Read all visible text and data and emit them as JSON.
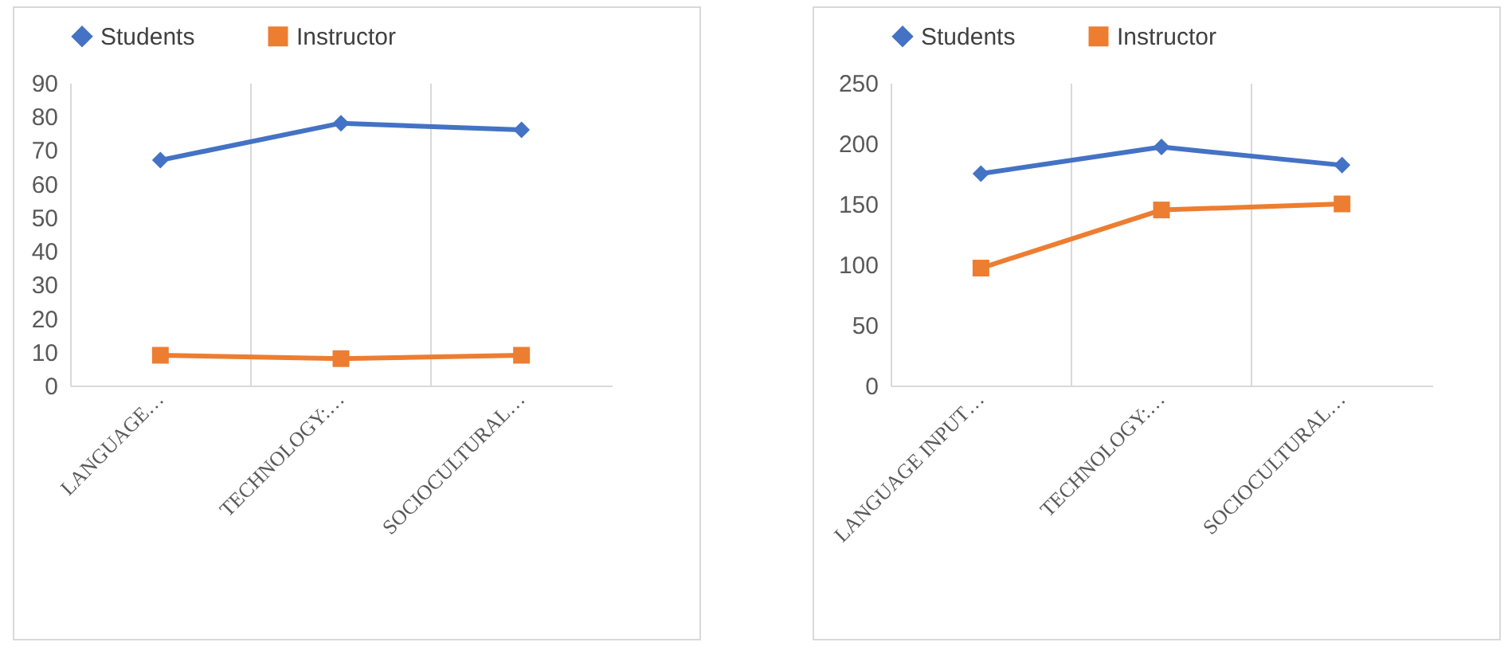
{
  "chart_data": [
    {
      "type": "line",
      "categories": [
        "LANGUAGE…",
        "TECHNOLOGY:…",
        "SOCIOCULTURAL…"
      ],
      "ylim": [
        0,
        90
      ],
      "yticks": [
        0,
        10,
        20,
        30,
        40,
        50,
        60,
        70,
        80,
        90
      ],
      "grid": "x",
      "legend": "top",
      "series": [
        {
          "name": "Students",
          "color": "#4472c4",
          "marker": "diamond",
          "values": [
            67,
            78,
            76
          ]
        },
        {
          "name": "Instructor",
          "color": "#ed7d31",
          "marker": "square",
          "values": [
            9,
            8,
            9
          ]
        }
      ]
    },
    {
      "type": "line",
      "categories": [
        "LANGUAGE INPUT…",
        "TECHNOLOGY:…",
        "SOCIOCULTURAL…"
      ],
      "ylim": [
        0,
        250
      ],
      "yticks": [
        0,
        50,
        100,
        150,
        200,
        250
      ],
      "grid": "x",
      "legend": "top",
      "series": [
        {
          "name": "Students",
          "color": "#4472c4",
          "marker": "diamond",
          "values": [
            175,
            197,
            182
          ]
        },
        {
          "name": "Instructor",
          "color": "#ed7d31",
          "marker": "square",
          "values": [
            97,
            145,
            150
          ]
        }
      ]
    }
  ]
}
